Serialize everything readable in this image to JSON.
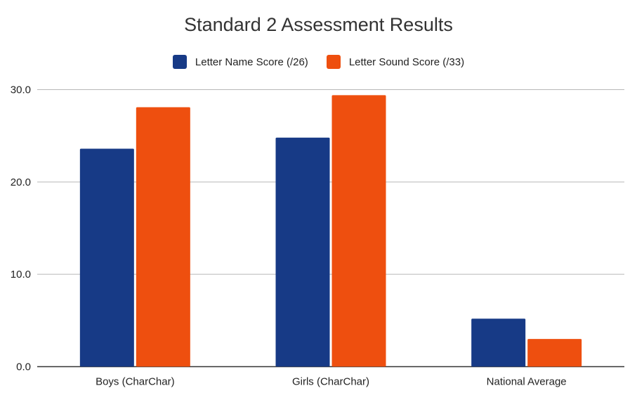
{
  "chart_data": {
    "type": "bar",
    "title": "Standard 2 Assessment Results",
    "categories": [
      "Boys (CharChar)",
      "Girls (CharChar)",
      "National Average"
    ],
    "series": [
      {
        "name": "Letter Name Score (/26)",
        "values": [
          23.6,
          24.8,
          5.2
        ],
        "color": "#173a86"
      },
      {
        "name": "Letter Sound Score (/33)",
        "values": [
          28.1,
          29.4,
          3.0
        ],
        "color": "#ee4f0f"
      }
    ],
    "xlabel": "",
    "ylabel": "",
    "ylim": [
      0,
      30
    ],
    "yticks": [
      0,
      10,
      20,
      30
    ],
    "ytick_labels": [
      "0.0",
      "10.0",
      "20.0",
      "30.0"
    ],
    "grid": true,
    "legend_position": "top"
  }
}
